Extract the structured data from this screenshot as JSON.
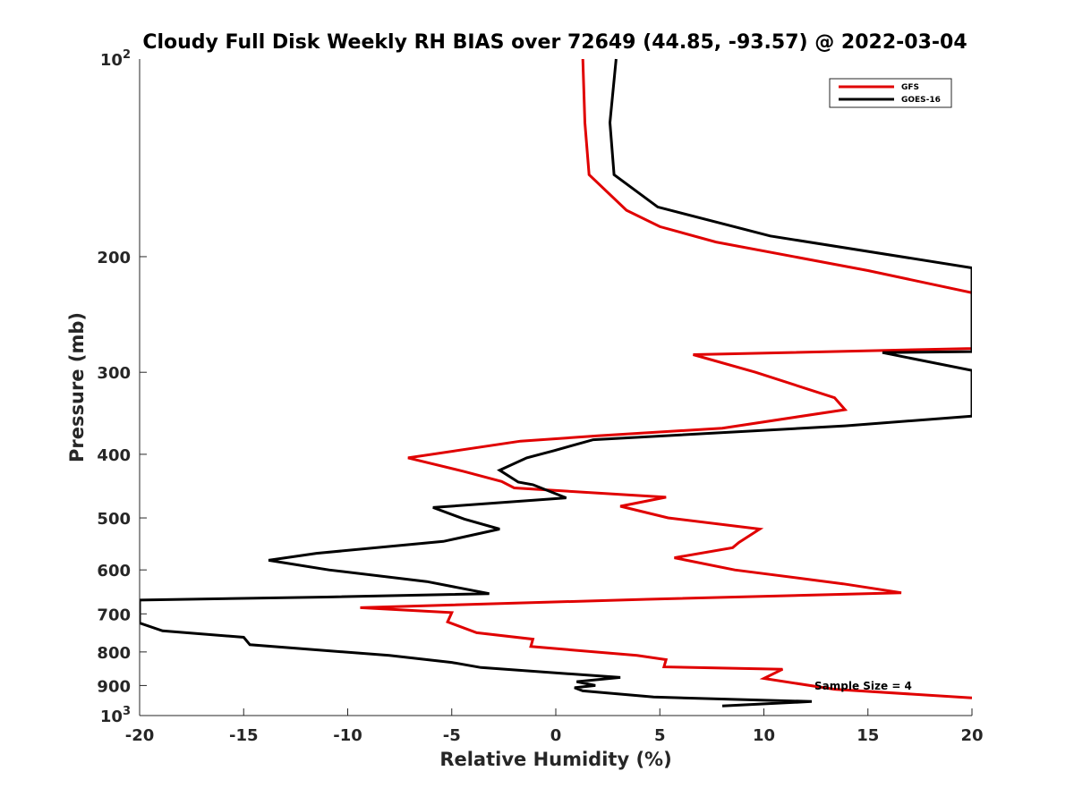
{
  "chart_data": {
    "type": "line",
    "title": "Cloudy Full Disk Weekly RH BIAS over 72649 (44.85, -93.57) @ 2022-03-04",
    "xlabel": "Relative Humidity (%)",
    "ylabel": "Pressure (mb)",
    "xlim": [
      -20,
      20
    ],
    "ylim": [
      100,
      1000
    ],
    "y_scale": "log",
    "y_reversed": true,
    "x_ticks": [
      -20,
      -15,
      -10,
      -5,
      0,
      5,
      10,
      15,
      20
    ],
    "x_tick_labels": [
      "-20",
      "-15",
      "-10",
      "-5",
      "0",
      "5",
      "10",
      "15",
      "20"
    ],
    "y_ticks": [
      200,
      300,
      400,
      500,
      600,
      700,
      800,
      900
    ],
    "y_tick_labels": [
      "200",
      "300",
      "400",
      "500",
      "600",
      "700",
      "800",
      "900"
    ],
    "y_extreme_labels": [
      {
        "value": 100,
        "base": "10",
        "exp": "2"
      },
      {
        "value": 1000,
        "base": "10",
        "exp": "3"
      }
    ],
    "grid": false,
    "legend_position": "top-right",
    "annotation": "Sample Size = 4",
    "series": [
      {
        "name": "GFS",
        "color": "#e00000",
        "points": [
          [
            1.3,
            100
          ],
          [
            1.4,
            125
          ],
          [
            1.6,
            150
          ],
          [
            3.4,
            170
          ],
          [
            5,
            180
          ],
          [
            7.7,
            190
          ],
          [
            15,
            210
          ],
          [
            20,
            227
          ],
          [
            20,
            274
          ],
          [
            20,
            276
          ],
          [
            6.6,
            282
          ],
          [
            9.6,
            300
          ],
          [
            13.4,
            328
          ],
          [
            13.9,
            342
          ],
          [
            8,
            365
          ],
          [
            2,
            375
          ],
          [
            -1.7,
            382
          ],
          [
            -7.1,
            405
          ],
          [
            -4.4,
            425
          ],
          [
            -2.6,
            440
          ],
          [
            -2,
            450
          ],
          [
            5.3,
            465
          ],
          [
            3.1,
            480
          ],
          [
            5.4,
            500
          ],
          [
            9.8,
            520
          ],
          [
            8.8,
            545
          ],
          [
            8.5,
            555
          ],
          [
            5.7,
            575
          ],
          [
            8.6,
            600
          ],
          [
            13.8,
            630
          ],
          [
            16.6,
            650
          ],
          [
            4.4,
            665
          ],
          [
            -9.4,
            685
          ],
          [
            -5,
            697
          ],
          [
            -5.2,
            720
          ],
          [
            -3.8,
            748
          ],
          [
            -1.1,
            765
          ],
          [
            -1.2,
            785
          ],
          [
            3.9,
            810
          ],
          [
            5.3,
            822
          ],
          [
            5.2,
            843
          ],
          [
            10.9,
            850
          ],
          [
            10,
            878
          ],
          [
            13.4,
            912
          ],
          [
            20,
            940
          ]
        ]
      },
      {
        "name": "GOES-16",
        "color": "#000000",
        "points": [
          [
            2.9,
            100
          ],
          [
            2.6,
            125
          ],
          [
            2.8,
            150
          ],
          [
            4.9,
            168
          ],
          [
            10.3,
            186
          ],
          [
            20,
            208
          ],
          [
            20,
            279
          ],
          [
            15.7,
            280
          ],
          [
            20,
            298
          ],
          [
            20,
            350
          ],
          [
            13.9,
            362
          ],
          [
            1.8,
            380
          ],
          [
            -0.1,
            395
          ],
          [
            -1.4,
            405
          ],
          [
            -2.7,
            423
          ],
          [
            -1.8,
            441
          ],
          [
            -1.1,
            445
          ],
          [
            0.5,
            466
          ],
          [
            -5.9,
            482
          ],
          [
            -4.4,
            502
          ],
          [
            -2.7,
            520
          ],
          [
            -5.4,
            543
          ],
          [
            -11.5,
            566
          ],
          [
            -13.8,
            580
          ],
          [
            -10.9,
            600
          ],
          [
            -6.2,
            625
          ],
          [
            -3.2,
            652
          ],
          [
            -11,
            660
          ],
          [
            -20,
            667
          ],
          [
            -20,
            723
          ],
          [
            -18.9,
            743
          ],
          [
            -15,
            760
          ],
          [
            -14.7,
            780
          ],
          [
            -8,
            810
          ],
          [
            -5,
            830
          ],
          [
            -3.6,
            845
          ],
          [
            3.1,
            875
          ],
          [
            1,
            888
          ],
          [
            1.9,
            900
          ],
          [
            0.9,
            907
          ],
          [
            1.3,
            917
          ],
          [
            4.7,
            937
          ],
          [
            12.3,
            952
          ],
          [
            8,
            967
          ]
        ]
      }
    ]
  }
}
